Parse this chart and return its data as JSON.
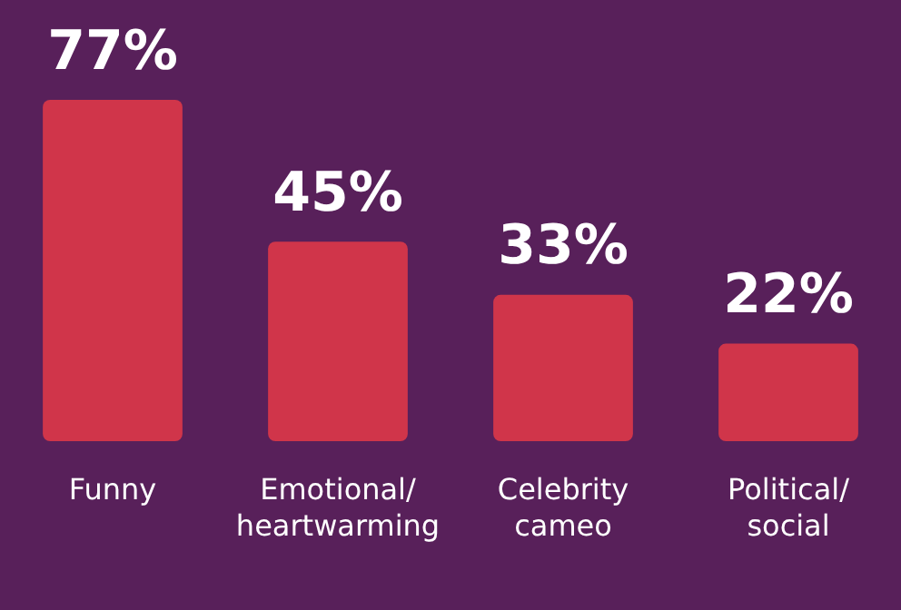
{
  "chart_data": {
    "type": "bar",
    "categories": [
      "Funny",
      "Emotional/ heartwarming",
      "Celebrity cameo",
      "Political/ social"
    ],
    "values": [
      77,
      45,
      33,
      22
    ],
    "color": "#d0354a",
    "value_labels": [
      "77%",
      "45%",
      "33%",
      "22%"
    ],
    "grid": false,
    "legend": false
  }
}
